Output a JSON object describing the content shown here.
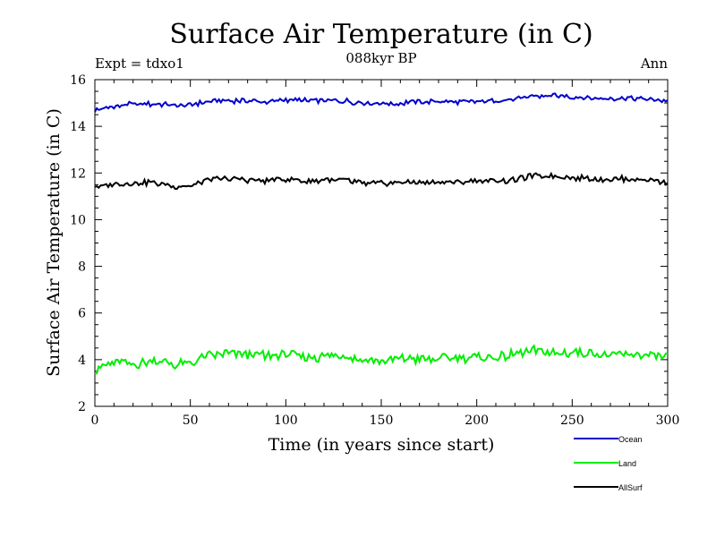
{
  "chart_data": {
    "type": "line",
    "title": "Surface Air Temperature (in C)",
    "subtitle": "088kyr BP",
    "annotation_left": "Expt = tdxo1",
    "annotation_right": "Ann",
    "xlabel": "Time (in years since start)",
    "ylabel": "Surface Air Temperature (in C)",
    "xlim": [
      0,
      300
    ],
    "ylim": [
      2,
      16
    ],
    "xticks": [
      0,
      50,
      100,
      150,
      200,
      250,
      300
    ],
    "yticks": [
      2,
      4,
      6,
      8,
      10,
      12,
      14,
      16
    ],
    "x": [
      0,
      10,
      20,
      30,
      40,
      50,
      60,
      70,
      80,
      90,
      100,
      110,
      120,
      130,
      140,
      150,
      160,
      170,
      180,
      190,
      200,
      210,
      220,
      230,
      240,
      250,
      260,
      270,
      280,
      290,
      300
    ],
    "series": [
      {
        "name": "Ocean",
        "color": "#0000cc",
        "values": [
          14.7,
          14.85,
          14.95,
          14.95,
          14.9,
          14.9,
          15.1,
          15.1,
          15.1,
          15.05,
          15.15,
          15.1,
          15.1,
          15.1,
          15.0,
          15.0,
          15.0,
          15.05,
          15.05,
          15.05,
          15.05,
          15.1,
          15.15,
          15.3,
          15.3,
          15.25,
          15.2,
          15.2,
          15.2,
          15.15,
          15.1
        ]
      },
      {
        "name": "Land",
        "color": "#00ee00",
        "values": [
          3.6,
          3.9,
          3.8,
          4.0,
          3.8,
          3.8,
          4.2,
          4.3,
          4.2,
          4.15,
          4.2,
          4.1,
          4.15,
          4.2,
          4.0,
          4.0,
          4.05,
          4.0,
          4.0,
          4.1,
          4.1,
          4.1,
          4.2,
          4.4,
          4.3,
          4.3,
          4.25,
          4.2,
          4.2,
          4.2,
          4.1
        ]
      },
      {
        "name": "AllSurf",
        "color": "#000000",
        "values": [
          11.4,
          11.55,
          11.55,
          11.6,
          11.45,
          11.45,
          11.75,
          11.75,
          11.7,
          11.65,
          11.75,
          11.65,
          11.7,
          11.7,
          11.55,
          11.55,
          11.6,
          11.6,
          11.6,
          11.6,
          11.65,
          11.65,
          11.7,
          11.9,
          11.85,
          11.8,
          11.75,
          11.75,
          11.75,
          11.7,
          11.6
        ]
      }
    ],
    "legend_placement": "bottom-right"
  }
}
